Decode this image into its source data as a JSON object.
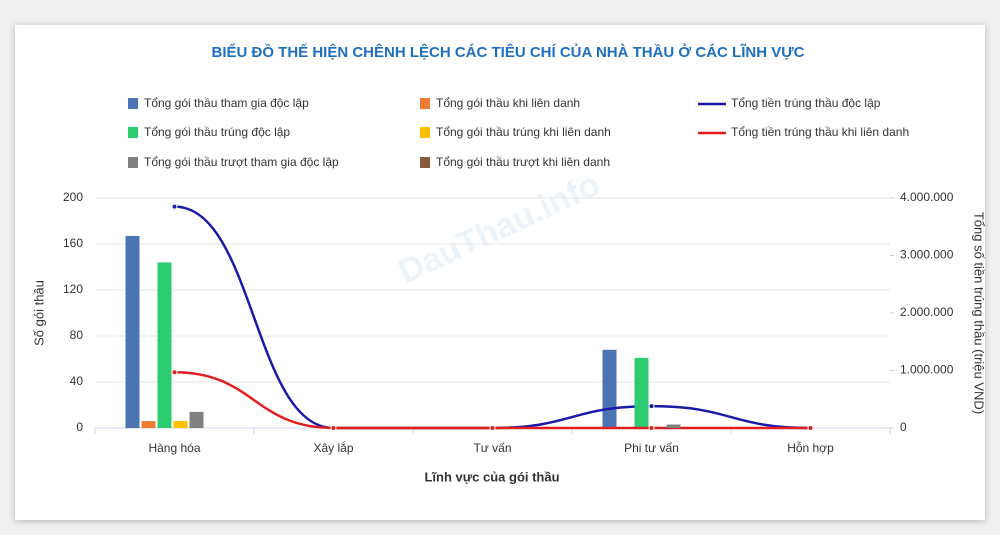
{
  "chart_data": {
    "type": "bar",
    "title": "BIỂU ĐỒ THỂ HIỆN CHÊNH LỆCH CÁC TIÊU CHÍ CỦA NHÀ THẦU Ở CÁC LĨNH VỰC",
    "watermark": "DauThau.info",
    "x_label": "Lĩnh vực của gói thầu",
    "y_label": "Số gói thầu",
    "y2_label": "Tổng số tiền trúng thầu (triệu VND)",
    "categories": [
      "Hàng hóa",
      "Xây lắp",
      "Tư vấn",
      "Phi tư vấn",
      "Hỗn hợp"
    ],
    "ylim": [
      0,
      200
    ],
    "yticks": [
      0,
      40,
      80,
      120,
      160,
      200
    ],
    "y2lim": [
      0,
      4000000
    ],
    "y2ticks": [
      0,
      {
        "value": 1000000,
        "label": "1.000.000"
      },
      {
        "value": 2000000,
        "label": "2.000.000"
      },
      {
        "value": 3000000,
        "label": "3.000.000"
      },
      {
        "value": 4000000,
        "label": "4.000.000"
      }
    ],
    "grid": true,
    "series": [
      {
        "name": "Tổng gói thầu tham gia độc lập",
        "type": "bar",
        "color": "#4a74b4",
        "values": [
          167,
          0,
          0,
          68,
          0
        ]
      },
      {
        "name": "Tổng gói thầu khi liên danh",
        "type": "bar",
        "color": "#ed7d31",
        "values": [
          6,
          0,
          0,
          0,
          0
        ]
      },
      {
        "name": "Tổng tiền trúng thầu độc lập",
        "type": "line",
        "axis": "y2",
        "color": "#1a1aa8",
        "values": [
          3850000,
          0,
          0,
          380000,
          0
        ]
      },
      {
        "name": "Tổng gói thầu trúng độc lập",
        "type": "bar",
        "color": "#2ecc71",
        "values": [
          144,
          0,
          0,
          61,
          0
        ]
      },
      {
        "name": "Tổng gói thầu trúng khi liên danh",
        "type": "bar",
        "color": "#ffc000",
        "values": [
          6,
          0,
          0,
          0,
          0
        ]
      },
      {
        "name": "Tổng tiền trúng thầu khi liên danh",
        "type": "line",
        "axis": "y2",
        "color": "#e02020",
        "values": [
          970000,
          0,
          0,
          0,
          0
        ]
      },
      {
        "name": "Tổng gói thầu trượt tham gia độc lập",
        "type": "bar",
        "color": "#808080",
        "values": [
          14,
          0,
          0,
          3,
          0
        ]
      },
      {
        "name": "Tổng gói thầu trượt khi liên danh",
        "type": "bar",
        "color": "#8b5a3c",
        "values": [
          0,
          0,
          0,
          0,
          0
        ]
      }
    ]
  }
}
